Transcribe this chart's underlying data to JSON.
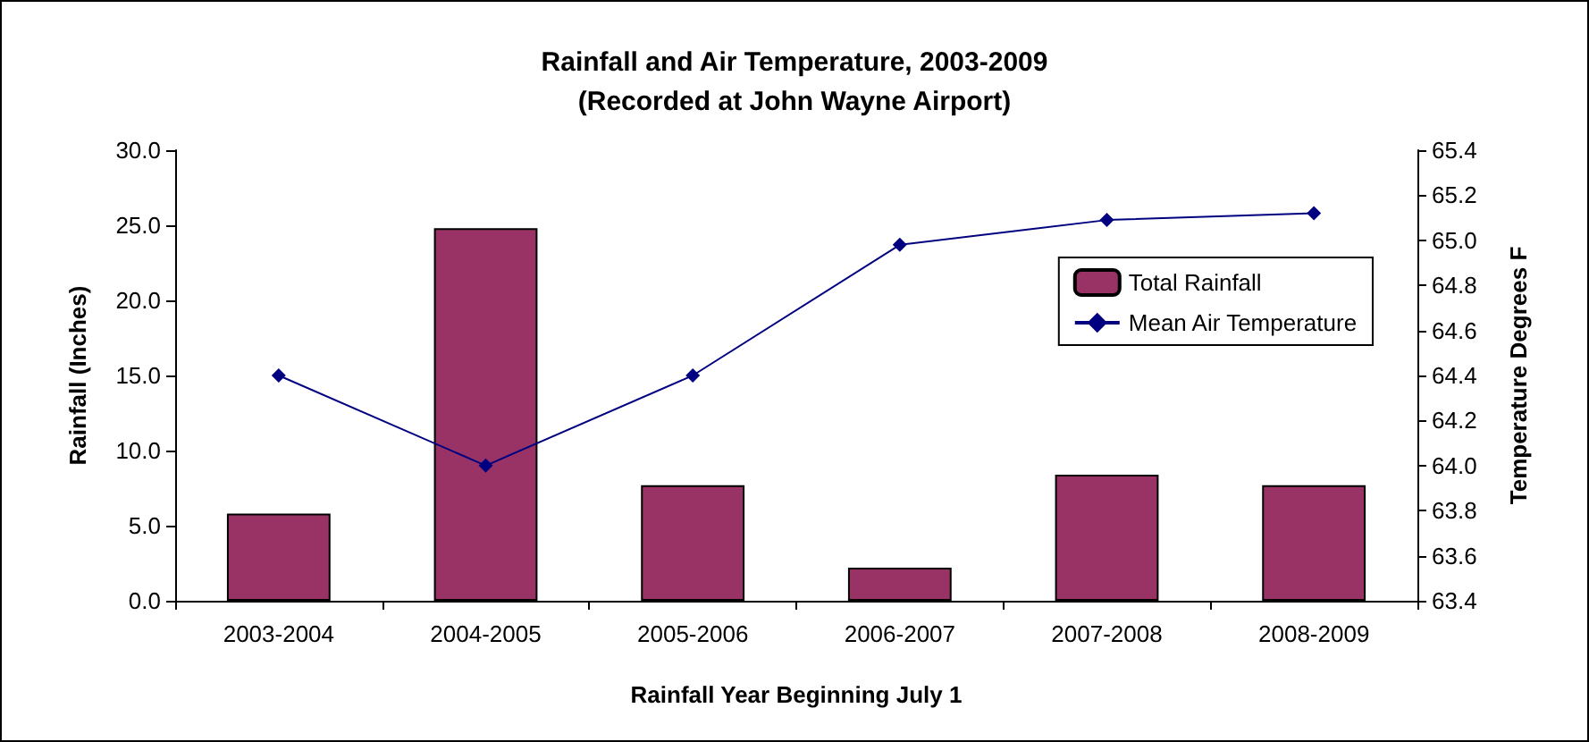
{
  "chart_data": {
    "type": "bar",
    "title": "Rainfall and Air Temperature, 2003-2009\n(Recorded at John Wayne Airport)",
    "xlabel": "Rainfall Year Beginning July 1",
    "ylabel": "Rainfall (Inches)",
    "y2label": "Temperature Degrees F",
    "categories": [
      "2003-2004",
      "2004-2005",
      "2005-2006",
      "2006-2007",
      "2007-2008",
      "2008-2009"
    ],
    "series": [
      {
        "name": "Total Rainfall",
        "color": "#993366",
        "values": [
          5.8,
          24.8,
          7.7,
          2.2,
          8.4,
          7.7
        ]
      },
      {
        "name": "Mean Air Temperature",
        "type": "line",
        "axis": "y2",
        "color": "#000080",
        "values": [
          64.4,
          64.0,
          64.4,
          64.98,
          65.09,
          65.12
        ]
      }
    ],
    "ylim": [
      0,
      30
    ],
    "yticks": [
      {
        "value": 0,
        "label": "0.0"
      },
      {
        "value": 5,
        "label": "5.0"
      },
      {
        "value": 10,
        "label": "10.0"
      },
      {
        "value": 15,
        "label": "15.0"
      },
      {
        "value": 20,
        "label": "20.0"
      },
      {
        "value": 25,
        "label": "25.0"
      },
      {
        "value": 30,
        "label": "30.0"
      }
    ],
    "y2lim": [
      63.4,
      65.4
    ],
    "y2ticks": [
      63.4,
      63.6,
      63.8,
      {
        "value": 64,
        "label": "64.0"
      },
      64.2,
      64.4,
      64.6,
      64.8,
      {
        "value": 65,
        "label": "65.0"
      },
      65.2,
      65.4
    ],
    "grid": false,
    "legend": "top right",
    "marker": "diamond",
    "line_style": "solid"
  }
}
